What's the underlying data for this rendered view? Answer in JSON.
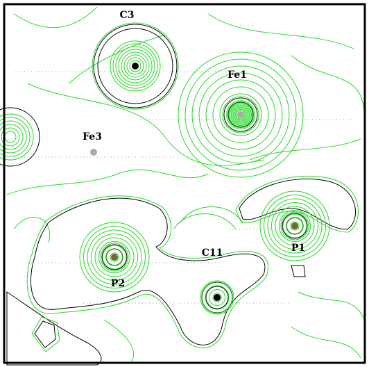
{
  "atoms": [
    {
      "label": "C3"
    },
    {
      "label": "Fe1"
    },
    {
      "label": "Fe3"
    },
    {
      "label": "C11"
    },
    {
      "label": "P1"
    },
    {
      "label": "P2"
    }
  ]
}
